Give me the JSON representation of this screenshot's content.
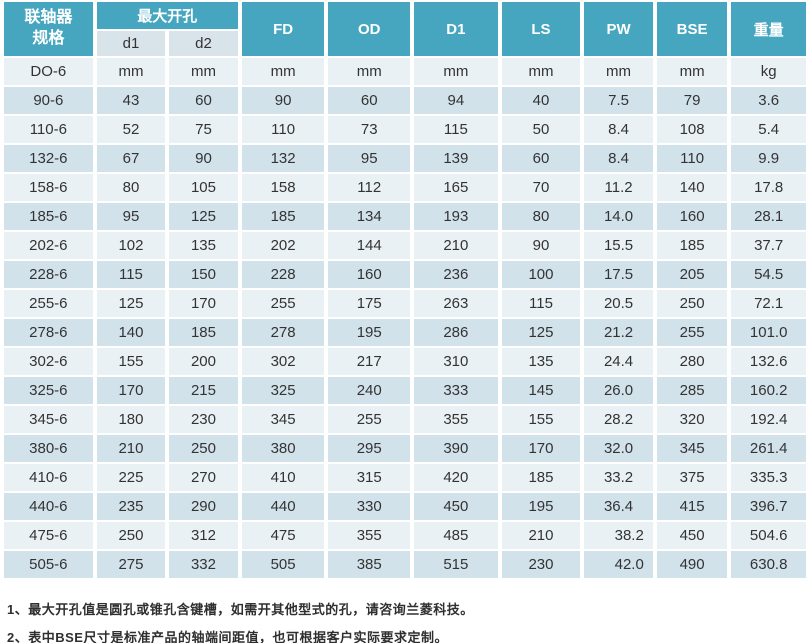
{
  "table": {
    "header": {
      "spec_line1": "联轴器",
      "spec_line2": "规格",
      "max_bore": "最大开孔",
      "sub_d1": "d1",
      "sub_d2": "d2",
      "cols": [
        "FD",
        "OD",
        "D1",
        "LS",
        "PW",
        "BSE",
        "重量"
      ]
    },
    "units_row": {
      "spec": "DO-6",
      "values": [
        "mm",
        "mm",
        "mm",
        "mm",
        "mm",
        "mm",
        "mm",
        "mm",
        "kg"
      ]
    },
    "rows": [
      {
        "spec": "90-6",
        "values": [
          "43",
          "60",
          "90",
          "60",
          "94",
          "40",
          "7.5",
          "79",
          "3.6"
        ]
      },
      {
        "spec": "110-6",
        "values": [
          "52",
          "75",
          "110",
          "73",
          "115",
          "50",
          "8.4",
          "108",
          "5.4"
        ]
      },
      {
        "spec": "132-6",
        "values": [
          "67",
          "90",
          "132",
          "95",
          "139",
          "60",
          "8.4",
          "110",
          "9.9"
        ]
      },
      {
        "spec": "158-6",
        "values": [
          "80",
          "105",
          "158",
          "112",
          "165",
          "70",
          "11.2",
          "140",
          "17.8"
        ]
      },
      {
        "spec": "185-6",
        "values": [
          "95",
          "125",
          "185",
          "134",
          "193",
          "80",
          "14.0",
          "160",
          "28.1"
        ]
      },
      {
        "spec": "202-6",
        "values": [
          "102",
          "135",
          "202",
          "144",
          "210",
          "90",
          "15.5",
          "185",
          "37.7"
        ]
      },
      {
        "spec": "228-6",
        "values": [
          "115",
          "150",
          "228",
          "160",
          "236",
          "100",
          "17.5",
          "205",
          "54.5"
        ]
      },
      {
        "spec": "255-6",
        "values": [
          "125",
          "170",
          "255",
          "175",
          "263",
          "115",
          "20.5",
          "250",
          "72.1"
        ]
      },
      {
        "spec": "278-6",
        "values": [
          "140",
          "185",
          "278",
          "195",
          "286",
          "125",
          "21.2",
          "255",
          "101.0"
        ]
      },
      {
        "spec": "302-6",
        "values": [
          "155",
          "200",
          "302",
          "217",
          "310",
          "135",
          "24.4",
          "280",
          "132.6"
        ]
      },
      {
        "spec": "325-6",
        "values": [
          "170",
          "215",
          "325",
          "240",
          "333",
          "145",
          "26.0",
          "285",
          "160.2"
        ]
      },
      {
        "spec": "345-6",
        "values": [
          "180",
          "230",
          "345",
          "255",
          "355",
          "155",
          "28.2",
          "320",
          "192.4"
        ]
      },
      {
        "spec": "380-6",
        "values": [
          "210",
          "250",
          "380",
          "295",
          "390",
          "170",
          "32.0",
          "345",
          "261.4"
        ]
      },
      {
        "spec": "410-6",
        "values": [
          "225",
          "270",
          "410",
          "315",
          "420",
          "185",
          "33.2",
          "375",
          "335.3"
        ]
      },
      {
        "spec": "440-6",
        "values": [
          "235",
          "290",
          "440",
          "330",
          "450",
          "195",
          "36.4",
          "415",
          "396.7"
        ]
      },
      {
        "spec": "475-6",
        "values": [
          "250",
          "312",
          "475",
          "355",
          "485",
          "210",
          "38.2",
          "450",
          "504.6"
        ]
      },
      {
        "spec": "505-6",
        "values": [
          "275",
          "332",
          "505",
          "385",
          "515",
          "230",
          "42.0",
          "490",
          "630.8"
        ]
      }
    ]
  },
  "notes": [
    "1、最大开孔值是圆孔或锥孔含键槽，如需开其他型式的孔，请咨询兰菱科技。",
    "2、表中BSE尺寸是标准产品的轴端间距值，也可根据客户实际要求定制。"
  ],
  "colors": {
    "header_teal": "#46a6bf",
    "row_dark": "#d2e2eb",
    "row_light": "#eaf1f5",
    "subheader": "#d9e3ea"
  }
}
